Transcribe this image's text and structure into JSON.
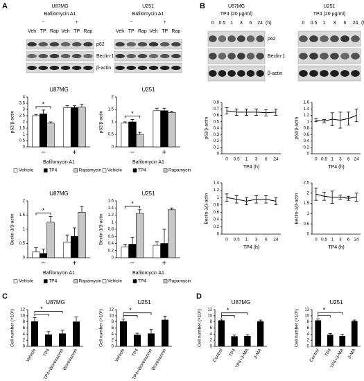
{
  "panels": [
    "A",
    "B",
    "C",
    "D"
  ],
  "blots": [
    {
      "cell_line": "U87MG",
      "treatment": "Bafilomycin A1",
      "groups": [
        "−",
        "+"
      ],
      "lanes": [
        "Veh",
        "TP",
        "Rap",
        "Veh",
        "TP",
        "Rap"
      ],
      "proteins": [
        "p62",
        "Beclin-1",
        "β-actin"
      ]
    },
    {
      "cell_line": "U251",
      "treatment": "Bafilomycin A1",
      "groups": [
        "−",
        "+"
      ],
      "lanes": [
        "Veh",
        "TP",
        "Rap",
        "Veh",
        "TP",
        "Rap"
      ]
    },
    {
      "cell_line": "U87MG",
      "treatment": "TP4 (20 μg/ml)",
      "lanes": [
        "0",
        "0.5",
        "1",
        "3",
        "6",
        "24"
      ],
      "unit": "(h)",
      "proteins": [
        "p62",
        "Beclin-1",
        "β-actin"
      ]
    },
    {
      "cell_line": "U251",
      "treatment": "TP4 (20 μg/ml)",
      "lanes": [
        "0",
        "0.5",
        "1",
        "3",
        "6",
        "24"
      ],
      "unit": "(h)"
    }
  ],
  "chart_data": [
    {
      "type": "bar",
      "title": "U87MG",
      "ylabel": "p62/β-actin",
      "xlabel": "Bafilomycin A1",
      "categories": [
        "−",
        "+"
      ],
      "series": [
        {
          "name": "Vehicle",
          "color": "#ffffff",
          "values": [
            2.5,
            3.15
          ],
          "errors": [
            0.1,
            0.15
          ]
        },
        {
          "name": "TP4",
          "color": "#000000",
          "values": [
            2.65,
            3.15
          ],
          "errors": [
            0.3,
            0.15
          ]
        },
        {
          "name": "Rapamycin",
          "color": "#c8c8c8",
          "values": [
            1.9,
            3.2
          ],
          "errors": [
            0.1,
            0.2
          ]
        }
      ],
      "ylim": [
        0,
        4
      ],
      "yticks": [
        0,
        0.5,
        1,
        1.5,
        2,
        2.5,
        3,
        3.5,
        4
      ],
      "annotations": [
        "*"
      ],
      "legend": "bottom"
    },
    {
      "type": "bar",
      "title": "U251",
      "ylabel": "p62/β-actin",
      "xlabel": "Bafilomycin A1",
      "categories": [
        "−",
        "+"
      ],
      "series": [
        {
          "name": "Vehicle",
          "color": "#ffffff",
          "values": [
            0.95,
            1.45
          ],
          "errors": [
            0.05,
            0.1
          ]
        },
        {
          "name": "TP4",
          "color": "#000000",
          "values": [
            1.0,
            1.45
          ],
          "errors": [
            0.1,
            0.1
          ]
        },
        {
          "name": "Rapamycin",
          "color": "#c8c8c8",
          "values": [
            0.5,
            1.38
          ],
          "errors": [
            0.08,
            0.05
          ]
        }
      ],
      "ylim": [
        0,
        2
      ],
      "yticks": [
        0,
        0.5,
        1,
        1.5,
        2
      ],
      "annotations": [
        "*"
      ],
      "legend": "bottom"
    },
    {
      "type": "bar",
      "title": "U87MG",
      "ylabel": "Beclin-1/β-actin",
      "xlabel": "Bafilomycin A1",
      "categories": [
        "−",
        "+"
      ],
      "series": [
        {
          "name": "Vehicle",
          "color": "#ffffff",
          "values": [
            0.2,
            0.55
          ],
          "errors": [
            0.15,
            0.25
          ]
        },
        {
          "name": "TP4",
          "color": "#000000",
          "values": [
            0.15,
            0.75
          ],
          "errors": [
            0.15,
            0.3
          ]
        },
        {
          "name": "Rapamycin",
          "color": "#c8c8c8",
          "values": [
            1.25,
            1.6
          ],
          "errors": [
            0.2,
            0.2
          ]
        }
      ],
      "ylim": [
        0,
        2
      ],
      "yticks": [
        0,
        0.5,
        1,
        1.5,
        2
      ],
      "annotations": [
        "*"
      ],
      "legend": "bottom"
    },
    {
      "type": "bar",
      "title": "U251",
      "ylabel": "Beclin-1/β-actin",
      "xlabel": "Bafilomycin A1",
      "categories": [
        "−",
        "+"
      ],
      "series": [
        {
          "name": "Vehicle",
          "color": "#ffffff",
          "values": [
            0.3,
            0.35
          ],
          "errors": [
            0.08,
            0.1
          ]
        },
        {
          "name": "TP4",
          "color": "#000000",
          "values": [
            0.38,
            0.4
          ],
          "errors": [
            0.2,
            0.4
          ]
        },
        {
          "name": "Rapamycin",
          "color": "#c8c8c8",
          "values": [
            1.25,
            1.35
          ],
          "errors": [
            0.1,
            0.05
          ]
        }
      ],
      "ylim": [
        0,
        1.6
      ],
      "yticks": [
        0,
        0.2,
        0.4,
        0.6,
        0.8,
        1,
        1.2,
        1.4,
        1.6
      ],
      "annotations": [
        "*"
      ],
      "legend": "bottom"
    },
    {
      "type": "line",
      "ylabel": "p62/β-actin",
      "xlabel": "TP4 (h)",
      "categories": [
        "0",
        "0.5",
        "1",
        "3",
        "6",
        "24"
      ],
      "values": [
        0.67,
        0.65,
        0.65,
        0.65,
        0.64,
        0.65
      ],
      "errors": [
        0.05,
        0.05,
        0.05,
        0.05,
        0.05,
        0.05
      ],
      "color": "#000000",
      "ylim": [
        0,
        0.8
      ],
      "yticks": [
        0,
        0.1,
        0.2,
        0.3,
        0.4,
        0.5,
        0.6,
        0.7,
        0.8
      ]
    },
    {
      "type": "line",
      "ylabel": "p62/β-actin",
      "xlabel": "TP4 (h)",
      "categories": [
        "0",
        "0.5",
        "1",
        "3",
        "6",
        "24"
      ],
      "values": [
        1.05,
        1.02,
        1.08,
        1.05,
        1.1,
        1.2
      ],
      "errors": [
        0.05,
        0.05,
        0.2,
        0.25,
        0.2,
        0.2
      ],
      "color": "#000000",
      "ylim": [
        0,
        1.6
      ],
      "yticks": [
        0,
        0.2,
        0.4,
        0.6,
        0.8,
        1,
        1.2,
        1.4,
        1.6
      ]
    },
    {
      "type": "line",
      "ylabel": "Beclin-1/β-actin",
      "xlabel": "TP4 (h)",
      "categories": [
        "0",
        "0.5",
        "1",
        "3",
        "6",
        "24"
      ],
      "values": [
        1.0,
        0.95,
        0.9,
        0.95,
        0.95,
        0.9
      ],
      "errors": [
        0.1,
        0.1,
        0.1,
        0.1,
        0.1,
        0.1
      ],
      "color": "#000000",
      "ylim": [
        0,
        1.4
      ],
      "yticks": [
        0,
        0.2,
        0.4,
        0.6,
        0.8,
        1,
        1.2,
        1.4
      ]
    },
    {
      "type": "line",
      "ylabel": "Beclin-1/β-actin",
      "xlabel": "TP4 (h)",
      "categories": [
        "0",
        "0.5",
        "1",
        "3",
        "6",
        "24"
      ],
      "values": [
        1.95,
        1.85,
        1.8,
        1.8,
        1.75,
        1.8
      ],
      "errors": [
        0.3,
        0.2,
        0.3,
        0.1,
        0.1,
        0.2
      ],
      "color": "#000000",
      "ylim": [
        0,
        2.5
      ],
      "yticks": [
        0,
        0.5,
        1,
        1.5,
        2,
        2.5
      ]
    },
    {
      "type": "bar",
      "title": "U87MG",
      "ylabel": "Cell number (×10⁵)",
      "categories": [
        "Vehicle",
        "TP4",
        "TP4+Wortmannin",
        "Wortmannin"
      ],
      "values": [
        8.2,
        3.9,
        4.2,
        8.1
      ],
      "errors": [
        1.2,
        0.9,
        1.1,
        1.5
      ],
      "color": "#000000",
      "ylim": [
        0,
        12
      ],
      "yticks": [
        0,
        2,
        4,
        6,
        8,
        10,
        12
      ],
      "annotations": [
        "*"
      ]
    },
    {
      "type": "bar",
      "title": "U251",
      "ylabel": "Cell number (×10⁵)",
      "categories": [
        "Vehicle",
        "TP4",
        "TP4+Wortmannin",
        "Wortmannin"
      ],
      "values": [
        8.2,
        3.8,
        4.2,
        8.7
      ],
      "errors": [
        0.7,
        0.5,
        1.3,
        1.2
      ],
      "color": "#000000",
      "ylim": [
        0,
        12
      ],
      "yticks": [
        0,
        2,
        4,
        6,
        8,
        10,
        12
      ],
      "annotations": [
        "*"
      ]
    },
    {
      "type": "bar",
      "title": "U87MG",
      "ylabel": "Cell number (×10⁵)",
      "categories": [
        "Control",
        "TP4",
        "TP4+3-MA",
        "3-MA"
      ],
      "values": [
        8.5,
        3.3,
        3.4,
        8.2
      ],
      "errors": [
        0.4,
        0.4,
        0.4,
        0.4
      ],
      "color": "#000000",
      "ylim": [
        0,
        12
      ],
      "yticks": [
        0,
        2,
        4,
        6,
        8,
        10,
        12
      ],
      "annotations": [
        "*"
      ]
    },
    {
      "type": "bar",
      "title": "U251",
      "ylabel": "Cell number (×10⁵)",
      "categories": [
        "Control",
        "TP4",
        "TP4+3-MA",
        "3-MA"
      ],
      "values": [
        8.5,
        3.8,
        3.4,
        8.3
      ],
      "errors": [
        0.5,
        0.4,
        0.5,
        0.3
      ],
      "color": "#000000",
      "ylim": [
        0,
        12
      ],
      "yticks": [
        0,
        2,
        4,
        6,
        8,
        10,
        12
      ],
      "annotations": [
        "*"
      ]
    }
  ]
}
